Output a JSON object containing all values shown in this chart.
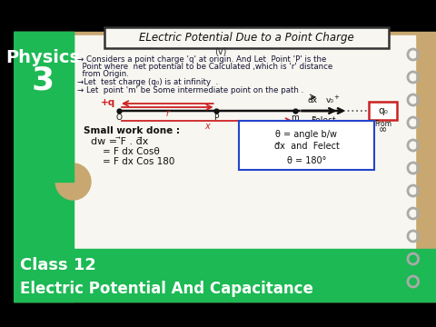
{
  "bg_color": "#000000",
  "notebook_tan": "#c8a870",
  "notebook_white": "#f8f6f0",
  "left_green": "#1db954",
  "bottom_green": "#1db954",
  "physics_text": "Physics",
  "number_text": "3",
  "class_text": "Class 12",
  "subject_text": "Electric Potential And Capacitance",
  "title_text": "ELectric Potential Due to a Point Charge",
  "subtitle_text": "(v)",
  "bullet1": "→ Considers a point charge 'q' at origin. And Let  Point 'P' is the",
  "bullet1b": "  Point where  net potential to be Calculated ,which is 'r' distance",
  "bullet1c": "  from Origin.",
  "bullet2": "→Let  test charge (q₀) is at infinity  .",
  "bullet3": "→ Let  point 'm' be Some intermediate point on the path .",
  "small_work": "Small work done :",
  "eq1": "dw = ⃗F . d⃗x",
  "eq2": "    = F dx Cosθ",
  "eq3": "    = F dx Cos 180",
  "box_text1": "θ = angle b/w",
  "box_text2": "d⃗x  and  Felect",
  "box_text3": "θ = 180°",
  "from_text": "From",
  "infinity_text": "∞",
  "q0_label": "q₀",
  "plus_q_label": "+q",
  "figsize": [
    4.8,
    3.6
  ],
  "dpi": 100
}
